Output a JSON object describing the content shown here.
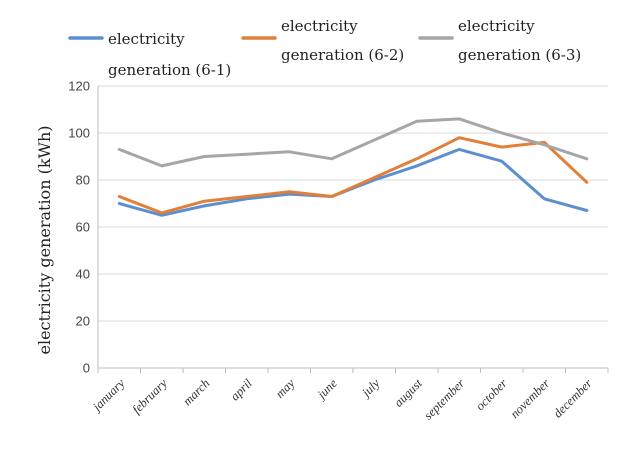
{
  "chart_data": {
    "type": "line",
    "title": "",
    "xlabel": "",
    "ylabel": "electricity generation (kWh)",
    "ylim": [
      0,
      120
    ],
    "yticks": [
      0,
      20,
      40,
      60,
      80,
      100,
      120
    ],
    "grid": true,
    "legend_position": "top",
    "categories": [
      "january",
      "february",
      "march",
      "april",
      "may",
      "june",
      "july",
      "august",
      "september",
      "october",
      "november",
      "december"
    ],
    "series": [
      {
        "name_line1": "electricity",
        "name_line2": "generation (6-1)",
        "color": "#5b8fd0",
        "values": [
          70,
          65,
          69,
          72,
          74,
          73,
          80,
          86,
          93,
          88,
          72,
          67
        ]
      },
      {
        "name_line1": "electricity",
        "name_line2": "generation (6-2)",
        "color": "#e0803a",
        "values": [
          73,
          66,
          71,
          73,
          75,
          73,
          81,
          89,
          98,
          94,
          96,
          79
        ]
      },
      {
        "name_line1": "electricity",
        "name_line2": "generation (6-3)",
        "color": "#a6a6a6",
        "values": [
          93,
          86,
          90,
          91,
          92,
          89,
          97,
          105,
          106,
          100,
          95,
          89
        ]
      }
    ]
  }
}
